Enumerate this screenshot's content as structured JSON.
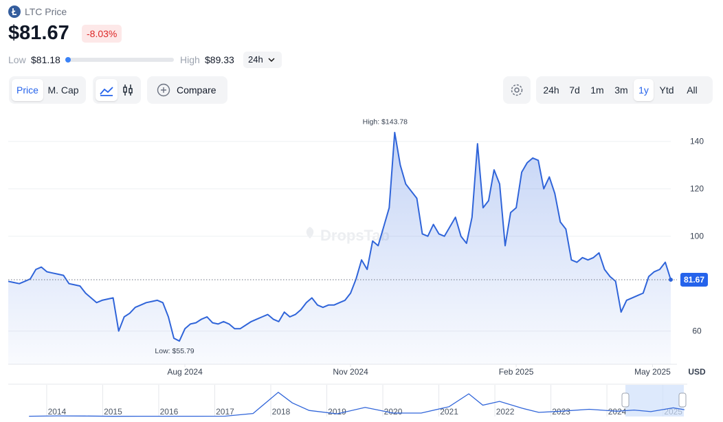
{
  "header": {
    "coin": "LTC Price",
    "price": "$81.67",
    "change": "-8.03%",
    "low_label": "Low",
    "low": "$81.18",
    "high_label": "High",
    "high": "$89.33",
    "range": "24h"
  },
  "toolbar": {
    "metrics": [
      "Price",
      "M. Cap"
    ],
    "compare": "Compare",
    "periods": [
      "24h",
      "7d",
      "1m",
      "3m",
      "1y",
      "Ytd",
      "All"
    ]
  },
  "chart_data": {
    "type": "line",
    "color": "#2f64d9",
    "values": [
      81,
      80.5,
      80,
      81,
      82,
      86,
      87,
      85,
      84.5,
      84,
      83.5,
      80,
      79.5,
      79,
      76,
      74,
      72,
      73,
      73.5,
      74,
      60,
      66,
      67.5,
      70,
      71,
      72,
      72.5,
      73,
      72,
      66,
      57,
      55.79,
      61,
      63,
      63.5,
      65,
      66,
      63.5,
      63,
      64,
      63,
      61,
      61,
      62.5,
      64,
      65,
      66,
      67,
      65,
      64,
      68,
      66,
      67,
      69,
      72,
      74,
      71,
      70,
      71,
      71,
      72,
      73,
      76,
      82,
      90,
      86,
      98,
      96,
      104,
      112,
      143.78,
      130,
      122,
      119,
      116,
      101,
      100,
      105,
      101,
      100,
      104,
      108,
      100,
      97,
      108,
      139,
      112,
      115,
      128,
      122,
      96,
      110,
      112,
      127,
      131,
      133,
      132,
      120,
      125,
      118,
      106,
      103,
      90,
      89,
      91,
      90,
      91,
      93,
      86,
      83,
      81,
      68,
      73,
      74,
      75,
      76,
      83,
      85,
      86,
      89,
      81.67
    ],
    "xticks": [
      {
        "value": 32,
        "label": "Aug 2024"
      },
      {
        "value": 62,
        "label": "Nov 2024"
      },
      {
        "value": 92,
        "label": "Feb 2025"
      },
      {
        "value": 116.7,
        "label": "May 2025"
      }
    ],
    "ylim": [
      46,
      146
    ],
    "yticks": [
      60,
      100,
      120,
      140
    ],
    "grid": true,
    "currency": "USD",
    "last_price": 81.67,
    "annotations": {
      "high": "High: $143.78",
      "low": "Low: $55.79"
    },
    "watermark": "DropsTab"
  },
  "navigator": {
    "x": [
      2013.5,
      2014,
      2014.5,
      2015,
      2015.5,
      2016,
      2016.5,
      2017,
      2017.5,
      2017.95,
      2018.2,
      2018.5,
      2019,
      2019.5,
      2020,
      2020.5,
      2021,
      2021.35,
      2021.6,
      2021.9,
      2022.3,
      2022.6,
      2023,
      2023.5,
      2024,
      2024.3,
      2024.6,
      2025,
      2025.2
    ],
    "values": [
      4,
      8,
      6,
      3,
      4,
      3.5,
      4,
      4.5,
      40,
      320,
      180,
      80,
      35,
      120,
      45,
      45,
      130,
      300,
      150,
      200,
      110,
      55,
      70,
      95,
      70,
      85,
      65,
      115,
      90
    ],
    "xlim": [
      2013.13,
      2025.25
    ],
    "ylim": [
      0,
      400
    ],
    "xticks": [
      2014,
      2015,
      2016,
      2017,
      2018,
      2019,
      2020,
      2021,
      2022,
      2023,
      2024,
      2025
    ]
  }
}
